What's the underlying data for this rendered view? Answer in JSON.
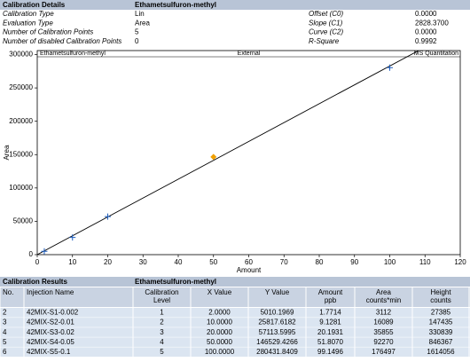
{
  "calibration_details": {
    "title": "Calibration Details",
    "compound": "Ethametsulfuron-methyl",
    "rows": [
      {
        "label": "Calibration Type",
        "value": "Lin",
        "label2": "Offset (C0)",
        "value2": "0.0000"
      },
      {
        "label": "Evaluation Type",
        "value": "Area",
        "label2": "Slope (C1)",
        "value2": "2828.3700"
      },
      {
        "label": "Number of Calibration Points",
        "value": "5",
        "label2": "Curve (C2)",
        "value2": "0.0000"
      },
      {
        "label": "Number of disabled Calibration Points",
        "value": "0",
        "label2": "R-Square",
        "value2": "0.9992"
      }
    ]
  },
  "chart_data": {
    "type": "scatter",
    "title_left": "Ethametsulfuron-methyl",
    "title_center": "External",
    "title_right": "MS Quantitation",
    "x_label": "Amount",
    "y_label": "Area",
    "x": [
      2,
      10,
      20,
      50,
      100
    ],
    "series": [
      {
        "color": "#1f5fbf",
        "values": [
          5010.1969,
          25817.6182,
          57113.5995,
          146529.4266,
          280431.8409
        ],
        "point_colors": [
          "#1f5fbf",
          "#1f5fbf",
          "#1f5fbf",
          "#f0a000",
          "#1f5fbf"
        ],
        "point_markers": [
          "cross",
          "cross",
          "cross",
          "diamond",
          "cross"
        ]
      }
    ],
    "fit_color": "#000000",
    "xlim": [
      0,
      120
    ],
    "xticks": [
      0,
      10,
      20,
      30,
      40,
      50,
      60,
      70,
      80,
      90,
      100,
      110,
      120
    ],
    "ylim": [
      0,
      306000
    ],
    "yticks": [
      0,
      50000,
      100000,
      150000,
      200000,
      250000,
      300000
    ]
  },
  "calibration_results": {
    "title": "Calibration Results",
    "compound": "Ethametsulfuron-methyl",
    "header": [
      [
        "No."
      ],
      [
        "Injection Name"
      ],
      [
        "Calibration",
        "Level"
      ],
      [
        "X Value"
      ],
      [
        "Y Value"
      ],
      [
        "Amount",
        "ppb"
      ],
      [
        "Area",
        "counts*min"
      ],
      [
        "Height",
        "counts"
      ]
    ],
    "rows": [
      [
        "2",
        "42MIX-S1-0.002",
        "1",
        "2.0000",
        "5010.1969",
        "1.7714",
        "3112",
        "27385"
      ],
      [
        "3",
        "42MIX-S2-0.01",
        "2",
        "10.0000",
        "25817.6182",
        "9.1281",
        "16089",
        "147435"
      ],
      [
        "4",
        "42MIX-S3-0.02",
        "3",
        "20.0000",
        "57113.5995",
        "20.1931",
        "35855",
        "330839"
      ],
      [
        "5",
        "42MIX-S4-0.05",
        "4",
        "50.0000",
        "146529.4266",
        "51.8070",
        "92270",
        "846367"
      ],
      [
        "6",
        "42MIX-S5-0.1",
        "5",
        "100.0000",
        "280431.8409",
        "99.1496",
        "176497",
        "1614056"
      ]
    ]
  }
}
